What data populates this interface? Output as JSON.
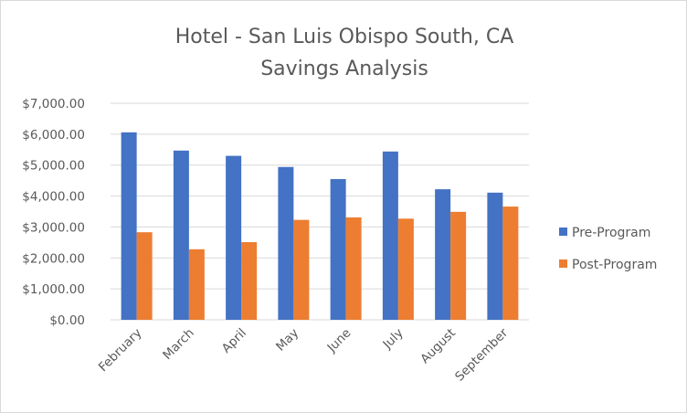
{
  "chart_data": {
    "type": "bar",
    "title": "Hotel - San Luis Obispo South, CA",
    "subtitle": "Savings Analysis",
    "categories": [
      "February",
      "March",
      "April",
      "May",
      "June",
      "July",
      "August",
      "September"
    ],
    "series": [
      {
        "name": "Pre-Program",
        "color": "#4472c4",
        "values": [
          6060,
          5470,
          5300,
          4940,
          4550,
          5440,
          4220,
          4110
        ]
      },
      {
        "name": "Post-Program",
        "color": "#ed7d31",
        "values": [
          2830,
          2280,
          2510,
          3230,
          3310,
          3270,
          3490,
          3660
        ]
      }
    ],
    "yticks": [
      "$0.00",
      "$1,000.00",
      "$2,000.00",
      "$3,000.00",
      "$4,000.00",
      "$5,000.00",
      "$6,000.00",
      "$7,000.00"
    ],
    "ylim": [
      0,
      7000
    ],
    "grid": true,
    "legend_position": "right",
    "xlabel": "",
    "ylabel": ""
  }
}
